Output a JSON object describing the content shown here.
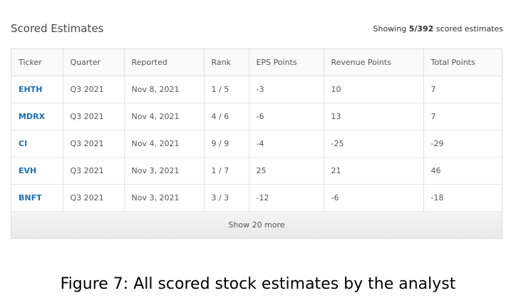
{
  "header": {
    "title": "Scored Estimates",
    "showing_prefix": "Showing ",
    "showing_count": "5/392",
    "showing_suffix": " scored estimates"
  },
  "table": {
    "columns": [
      "Ticker",
      "Quarter",
      "Reported",
      "Rank",
      "EPS Points",
      "Revenue Points",
      "Total Points"
    ],
    "rows": [
      {
        "ticker": "EHTH",
        "quarter": "Q3 2021",
        "reported": "Nov 8, 2021",
        "rank": "1 / 5",
        "eps": "-3",
        "revenue": "10",
        "total": "7"
      },
      {
        "ticker": "MDRX",
        "quarter": "Q3 2021",
        "reported": "Nov 4, 2021",
        "rank": "4 / 6",
        "eps": "-6",
        "revenue": "13",
        "total": "7"
      },
      {
        "ticker": "CI",
        "quarter": "Q3 2021",
        "reported": "Nov 4, 2021",
        "rank": "9 / 9",
        "eps": "-4",
        "revenue": "-25",
        "total": "-29"
      },
      {
        "ticker": "EVH",
        "quarter": "Q3 2021",
        "reported": "Nov 3, 2021",
        "rank": "1 / 7",
        "eps": "25",
        "revenue": "21",
        "total": "46"
      },
      {
        "ticker": "BNFT",
        "quarter": "Q3 2021",
        "reported": "Nov 3, 2021",
        "rank": "3 / 3",
        "eps": "-12",
        "revenue": "-6",
        "total": "-18"
      }
    ],
    "show_more_label": "Show 20 more"
  },
  "caption": "Figure 7:  All scored stock estimates by the analyst",
  "colors": {
    "ticker_link": "#1a6fb3",
    "border": "#dcdcdc",
    "show_more_bg": "#ececec"
  }
}
